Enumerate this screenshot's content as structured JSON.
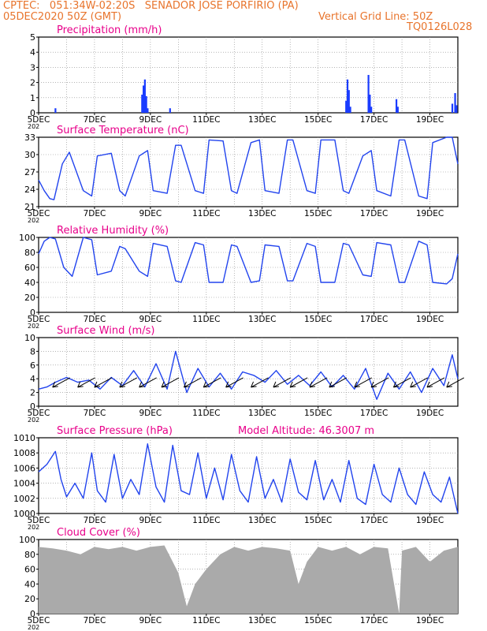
{
  "header": {
    "line1": "CPTEC:   051:34W-02:20S   SENADOR JOSE PORFIRIO (PA)",
    "line2_left": "05DEC2020 50Z (GMT)",
    "line2_right": "Vertical Grid Line: 50Z",
    "line3_right": "TQ0126L028"
  },
  "colors": {
    "header": "#e8742c",
    "title": "#e8008a",
    "series": "#2244ee",
    "cloud": "#aaaaaa",
    "bars": "#1a3cff"
  },
  "x_tick_labels": [
    "5DEC",
    "7DEC",
    "9DEC",
    "11DEC",
    "13DEC",
    "15DEC",
    "17DEC",
    "19DEC"
  ],
  "year_stub": "202",
  "model_altitude": "Model Altitude: 46.3007 m",
  "chart_data": [
    {
      "type": "bar",
      "title": "Precipitation (mm/h)",
      "xlim": [
        0,
        15
      ],
      "ylim": [
        0,
        5
      ],
      "yticks": [
        "0",
        "1",
        "2",
        "3",
        "4",
        "5"
      ],
      "x_unit": "days since 5DEC",
      "x": [
        0.6,
        3.7,
        3.75,
        3.8,
        3.85,
        3.9,
        4.7,
        11.0,
        11.05,
        11.1,
        11.15,
        11.8,
        11.85,
        11.9,
        12.8,
        12.85,
        14.8,
        14.9,
        14.95
      ],
      "values": [
        0.3,
        1.2,
        1.8,
        2.2,
        1.1,
        0.3,
        0.3,
        0.8,
        2.2,
        1.5,
        0.4,
        2.5,
        1.2,
        0.4,
        0.9,
        0.4,
        0.6,
        1.3,
        0.5
      ]
    },
    {
      "type": "line",
      "title": "Surface Temperature (nC)",
      "xlim": [
        0,
        15
      ],
      "ylim": [
        20,
        33
      ],
      "yticks": [
        "21",
        "24",
        "27",
        "30",
        "33"
      ],
      "x": [
        0,
        0.2,
        0.4,
        0.55,
        0.85,
        1.1,
        1.6,
        1.9,
        2.1,
        2.6,
        2.9,
        3.1,
        3.6,
        3.9,
        4.1,
        4.6,
        4.9,
        5.1,
        5.6,
        5.9,
        6.1,
        6.6,
        6.9,
        7.1,
        7.6,
        7.9,
        8.1,
        8.6,
        8.9,
        9.1,
        9.6,
        9.9,
        10.1,
        10.6,
        10.9,
        11.1,
        11.6,
        11.9,
        12.1,
        12.6,
        12.9,
        13.1,
        13.6,
        13.9,
        14.1,
        14.6,
        14.8,
        15
      ],
      "values": [
        25.0,
        23.0,
        21.5,
        21.3,
        28.0,
        30.2,
        23.0,
        22.0,
        29.5,
        30.0,
        23.0,
        22.0,
        29.5,
        30.5,
        23.0,
        22.5,
        31.5,
        31.5,
        23.0,
        22.5,
        32.5,
        32.3,
        23.0,
        22.5,
        32.0,
        32.5,
        23.0,
        22.5,
        32.5,
        32.5,
        23.0,
        22.5,
        32.5,
        32.5,
        23.0,
        22.5,
        29.5,
        30.5,
        23.0,
        22.0,
        32.5,
        32.5,
        22.0,
        21.5,
        32.0,
        33.0,
        33.0,
        28.0
      ]
    },
    {
      "type": "line",
      "title": "Relative Humidity (%)",
      "xlim": [
        0,
        15
      ],
      "ylim": [
        0,
        100
      ],
      "yticks": [
        "0",
        "20",
        "40",
        "60",
        "80",
        "100"
      ],
      "x": [
        0,
        0.2,
        0.4,
        0.6,
        0.9,
        1.2,
        1.6,
        1.9,
        2.1,
        2.6,
        2.9,
        3.1,
        3.6,
        3.9,
        4.1,
        4.6,
        4.9,
        5.1,
        5.6,
        5.9,
        6.1,
        6.6,
        6.9,
        7.1,
        7.6,
        7.9,
        8.1,
        8.6,
        8.9,
        9.1,
        9.6,
        9.9,
        10.1,
        10.6,
        10.9,
        11.1,
        11.6,
        11.9,
        12.1,
        12.6,
        12.9,
        13.1,
        13.6,
        13.9,
        14.1,
        14.6,
        14.8,
        15
      ],
      "values": [
        78,
        95,
        100,
        98,
        60,
        48,
        100,
        97,
        50,
        55,
        88,
        85,
        55,
        48,
        92,
        88,
        42,
        40,
        93,
        90,
        40,
        40,
        90,
        88,
        40,
        42,
        90,
        88,
        42,
        42,
        92,
        88,
        40,
        40,
        92,
        90,
        50,
        48,
        93,
        90,
        40,
        40,
        95,
        90,
        40,
        38,
        45,
        78
      ]
    },
    {
      "type": "line",
      "title": "Surface Wind (m/s)",
      "xlim": [
        0,
        15
      ],
      "ylim": [
        0,
        10
      ],
      "yticks": [
        "0",
        "2",
        "4",
        "6",
        "8",
        "10"
      ],
      "x": [
        0,
        0.3,
        0.6,
        1.0,
        1.4,
        1.8,
        2.2,
        2.6,
        3.0,
        3.4,
        3.8,
        4.2,
        4.6,
        4.9,
        5.3,
        5.7,
        6.1,
        6.5,
        6.9,
        7.3,
        7.7,
        8.1,
        8.5,
        8.9,
        9.3,
        9.7,
        10.1,
        10.5,
        10.9,
        11.3,
        11.7,
        12.1,
        12.5,
        12.9,
        13.3,
        13.7,
        14.1,
        14.5,
        14.8,
        15
      ],
      "values": [
        2.5,
        2.8,
        3.5,
        4.2,
        3.5,
        3.8,
        2.5,
        4.2,
        3.0,
        5.2,
        2.8,
        6.2,
        2.5,
        8.0,
        2.0,
        5.5,
        2.8,
        4.8,
        2.5,
        5.0,
        4.5,
        3.5,
        5.2,
        3.2,
        4.5,
        3.0,
        5.0,
        2.8,
        4.5,
        2.5,
        5.5,
        1.0,
        4.8,
        2.5,
        5.0,
        2.0,
        5.5,
        3.0,
        7.5,
        4.0
      ],
      "arrows_x": [
        0.5,
        1.4,
        2.0,
        2.9,
        3.6,
        4.4,
        5.2,
        5.9,
        6.7,
        7.6,
        8.4,
        9.0,
        9.7,
        10.4,
        11.3,
        11.9,
        12.7,
        13.3,
        13.9,
        14.6
      ],
      "arrows_direction": "NE"
    },
    {
      "type": "line",
      "title": "Surface Pressure (hPa)",
      "xlim": [
        0,
        15
      ],
      "ylim": [
        1000,
        1010
      ],
      "yticks": [
        "1000",
        "1002",
        "1004",
        "1006",
        "1008",
        "1010"
      ],
      "x": [
        0,
        0.3,
        0.6,
        0.8,
        1.0,
        1.3,
        1.6,
        1.9,
        2.1,
        2.4,
        2.7,
        3.0,
        3.3,
        3.6,
        3.9,
        4.2,
        4.5,
        4.8,
        5.1,
        5.4,
        5.7,
        6.0,
        6.3,
        6.6,
        6.9,
        7.2,
        7.5,
        7.8,
        8.1,
        8.4,
        8.7,
        9.0,
        9.3,
        9.6,
        9.9,
        10.2,
        10.5,
        10.8,
        11.1,
        11.4,
        11.7,
        12.0,
        12.3,
        12.6,
        12.9,
        13.2,
        13.5,
        13.8,
        14.1,
        14.4,
        14.7,
        15
      ],
      "values": [
        1005.5,
        1006.5,
        1008.2,
        1004.5,
        1002.2,
        1004.0,
        1002.0,
        1008.0,
        1003.0,
        1001.5,
        1007.8,
        1002.0,
        1004.5,
        1002.5,
        1009.2,
        1003.5,
        1001.5,
        1009.0,
        1003.0,
        1002.5,
        1008.0,
        1002.0,
        1006.0,
        1001.8,
        1007.8,
        1003.0,
        1001.5,
        1007.5,
        1002.0,
        1004.5,
        1001.5,
        1007.2,
        1002.8,
        1001.8,
        1007.0,
        1001.8,
        1004.5,
        1001.5,
        1007.0,
        1002.0,
        1001.2,
        1006.5,
        1002.5,
        1001.5,
        1006.0,
        1002.5,
        1001.2,
        1005.5,
        1002.5,
        1001.5,
        1004.8,
        1000.0
      ]
    },
    {
      "type": "area",
      "title": "Cloud Cover (%)",
      "xlim": [
        0,
        15
      ],
      "ylim": [
        0,
        100
      ],
      "yticks": [
        "0",
        "20",
        "40",
        "60",
        "80",
        "100"
      ],
      "x": [
        0,
        0.5,
        1.0,
        1.5,
        2.0,
        2.5,
        3.0,
        3.5,
        4.0,
        4.5,
        5.0,
        5.3,
        5.6,
        6.0,
        6.5,
        7.0,
        7.5,
        8.0,
        8.5,
        9.0,
        9.3,
        9.6,
        10.0,
        10.5,
        11.0,
        11.5,
        12.0,
        12.5,
        12.9,
        13.0,
        13.5,
        14.0,
        14.5,
        15
      ],
      "values": [
        90,
        88,
        85,
        80,
        90,
        87,
        90,
        85,
        90,
        92,
        55,
        10,
        40,
        60,
        80,
        90,
        85,
        90,
        88,
        85,
        40,
        70,
        90,
        85,
        90,
        80,
        90,
        88,
        0,
        85,
        90,
        70,
        85,
        90
      ]
    }
  ]
}
